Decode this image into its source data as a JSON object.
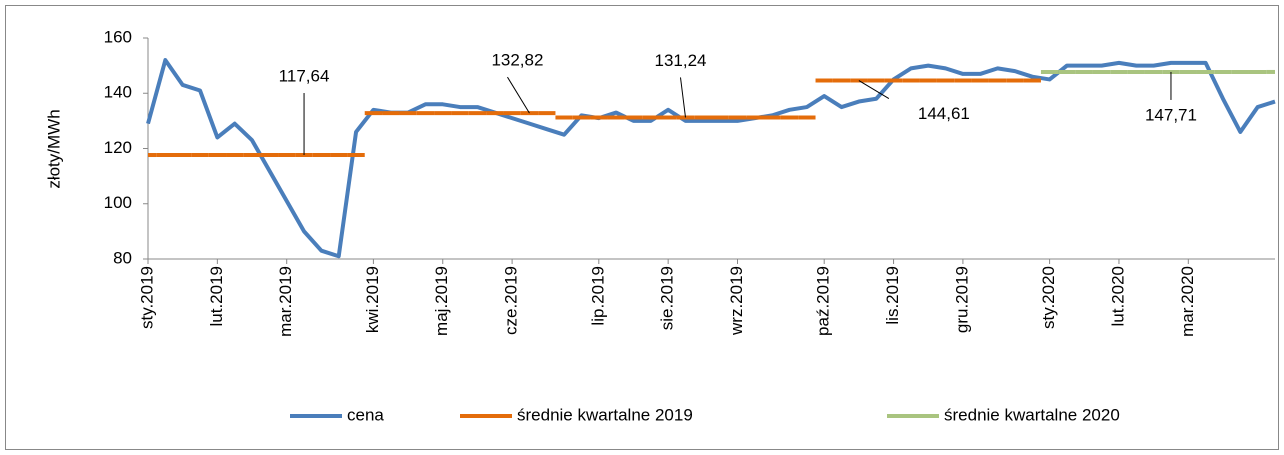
{
  "chart_data": {
    "type": "line",
    "y_label": "złoty/MWh",
    "categories": [
      "sty.2019",
      null,
      null,
      null,
      "lut.2019",
      null,
      null,
      null,
      "mar.2019",
      null,
      null,
      null,
      null,
      "kwi.2019",
      null,
      null,
      null,
      "maj.2019",
      null,
      null,
      null,
      "cze.2019",
      null,
      null,
      null,
      null,
      "lip.2019",
      null,
      null,
      null,
      "sie.2019",
      null,
      null,
      null,
      "wrz.2019",
      null,
      null,
      null,
      null,
      "paź.2019",
      null,
      null,
      null,
      "lis.2019",
      null,
      null,
      null,
      "gru.2019",
      null,
      null,
      null,
      null,
      "sty.2020",
      null,
      null,
      null,
      "lut.2020",
      null,
      null,
      null,
      "mar.2020",
      null,
      null,
      null,
      null,
      null
    ],
    "ylim": [
      80,
      160
    ],
    "yticks": [
      80,
      100,
      120,
      140,
      160
    ],
    "series": [
      {
        "name": "cena",
        "color": "#4a7ebb",
        "style": "line",
        "values": [
          129,
          152,
          143,
          141,
          124,
          129,
          123,
          112,
          101,
          90,
          83,
          81,
          126,
          134,
          133,
          133,
          136,
          136,
          135,
          135,
          133,
          131,
          129,
          127,
          125,
          132,
          131,
          133,
          130,
          130,
          134,
          130,
          130,
          130,
          130,
          131,
          132,
          134,
          135,
          139,
          135,
          137,
          138,
          145,
          149,
          150,
          149,
          147,
          147,
          149,
          148,
          146,
          145,
          150,
          150,
          150,
          151,
          150,
          150,
          151,
          151,
          151,
          138,
          126,
          135,
          137
        ]
      },
      {
        "name": "średnie kwartalne 2019",
        "color": "#e46c0a",
        "style": "step",
        "values": [
          117.64,
          117.64,
          117.64,
          117.64,
          117.64,
          117.64,
          117.64,
          117.64,
          117.64,
          117.64,
          117.64,
          117.64,
          117.64,
          132.82,
          132.82,
          132.82,
          132.82,
          132.82,
          132.82,
          132.82,
          132.82,
          132.82,
          132.82,
          132.82,
          131.24,
          131.24,
          131.24,
          131.24,
          131.24,
          131.24,
          131.24,
          131.24,
          131.24,
          131.24,
          131.24,
          131.24,
          131.24,
          131.24,
          131.24,
          144.61,
          144.61,
          144.61,
          144.61,
          144.61,
          144.61,
          144.61,
          144.61,
          144.61,
          144.61,
          144.61,
          144.61,
          144.61,
          null,
          null,
          null,
          null,
          null,
          null,
          null,
          null,
          null,
          null,
          null,
          null,
          null,
          null
        ],
        "value_labels": [
          null,
          null,
          null,
          null,
          null,
          null,
          null,
          null,
          null,
          "117,64",
          null,
          null,
          null,
          null,
          null,
          null,
          null,
          null,
          null,
          null,
          null,
          null,
          "132,82",
          null,
          null,
          null,
          null,
          null,
          null,
          null,
          null,
          "131,24",
          null,
          null,
          null,
          null,
          null,
          null,
          null,
          null,
          null,
          "144,61",
          null,
          null,
          null,
          null,
          null,
          null,
          null,
          null,
          null,
          null,
          null,
          null,
          null,
          null,
          null,
          null,
          null,
          null,
          null,
          null,
          null,
          null,
          null,
          null
        ]
      },
      {
        "name": "średnie kwartalne 2020",
        "color": "#a9c47f",
        "style": "step",
        "values": [
          null,
          null,
          null,
          null,
          null,
          null,
          null,
          null,
          null,
          null,
          null,
          null,
          null,
          null,
          null,
          null,
          null,
          null,
          null,
          null,
          null,
          null,
          null,
          null,
          null,
          null,
          null,
          null,
          null,
          null,
          null,
          null,
          null,
          null,
          null,
          null,
          null,
          null,
          null,
          null,
          null,
          null,
          null,
          null,
          null,
          null,
          null,
          null,
          null,
          null,
          null,
          null,
          147.71,
          147.71,
          147.71,
          147.71,
          147.71,
          147.71,
          147.71,
          147.71,
          147.71,
          147.71,
          147.71,
          147.71,
          147.71,
          147.71
        ],
        "value_labels": [
          null,
          null,
          null,
          null,
          null,
          null,
          null,
          null,
          null,
          null,
          null,
          null,
          null,
          null,
          null,
          null,
          null,
          null,
          null,
          null,
          null,
          null,
          null,
          null,
          null,
          null,
          null,
          null,
          null,
          null,
          null,
          null,
          null,
          null,
          null,
          null,
          null,
          null,
          null,
          null,
          null,
          null,
          null,
          null,
          null,
          null,
          null,
          null,
          null,
          null,
          null,
          null,
          null,
          null,
          null,
          null,
          null,
          null,
          null,
          "147,71",
          null,
          null,
          null,
          null,
          null,
          null
        ]
      }
    ],
    "legend": "bottom"
  }
}
